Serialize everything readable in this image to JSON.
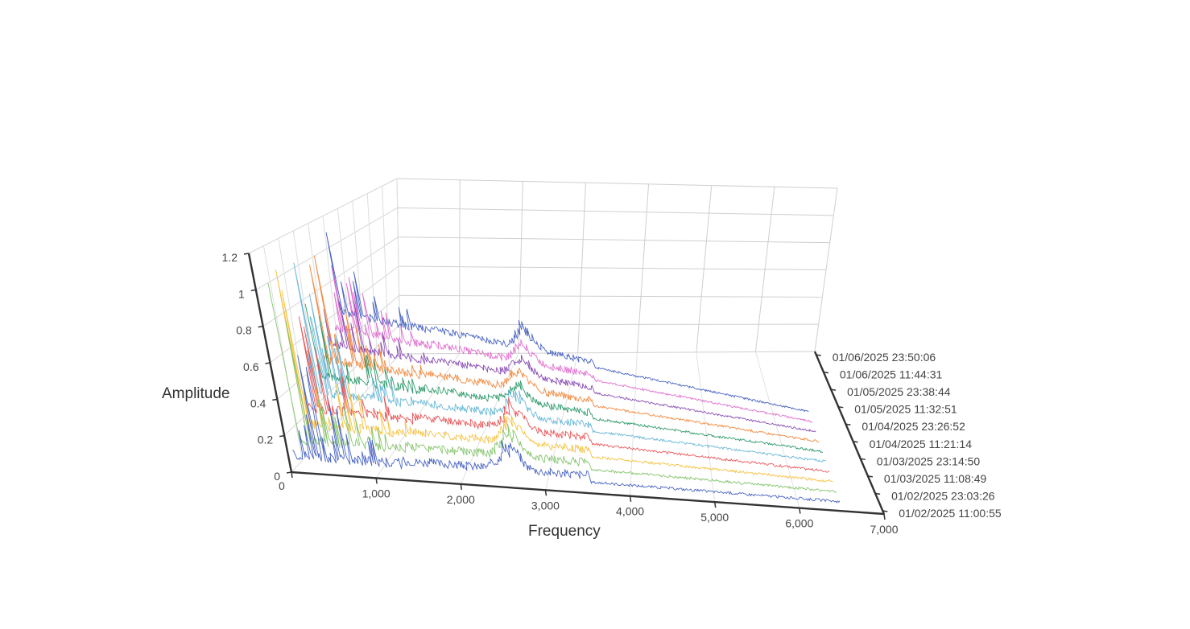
{
  "chart_data": {
    "type": "line",
    "projection": "3d-waterfall",
    "xlabel": "Frequency",
    "ylabel": "",
    "zlabel": "Amplitude",
    "xlim": [
      0,
      7000
    ],
    "zlim": [
      0,
      1.2
    ],
    "x_ticks": [
      "0",
      "1,000",
      "2,000",
      "3,000",
      "4,000",
      "5,000",
      "6,000",
      "7,000"
    ],
    "z_ticks": [
      "0",
      "0.2",
      "0.4",
      "0.6",
      "0.8",
      "1",
      "1.2"
    ],
    "grid": true,
    "legend": "none",
    "series": [
      {
        "name": "01/06/2025 23:50:06",
        "color": "#4a65c2",
        "peak_amplitude": 1.1,
        "resonance_amplitude": 0.14,
        "resonance_frequency": 2800
      },
      {
        "name": "01/06/2025 11:44:31",
        "color": "#86c56e",
        "peak_amplitude": 1.05,
        "resonance_amplitude": 0.14,
        "resonance_frequency": 2800
      },
      {
        "name": "01/05/2025 23:38:44",
        "color": "#f5c242",
        "peak_amplitude": 1.0,
        "resonance_amplitude": 0.14,
        "resonance_frequency": 2800
      },
      {
        "name": "01/05/2025 11:32:51",
        "color": "#e8575a",
        "peak_amplitude": 1.0,
        "resonance_amplitude": 0.15,
        "resonance_frequency": 2800
      },
      {
        "name": "01/04/2025 23:26:52",
        "color": "#6ab8d6",
        "peak_amplitude": 0.95,
        "resonance_amplitude": 0.14,
        "resonance_frequency": 2800
      },
      {
        "name": "01/04/2025 11:21:14",
        "color": "#2e9a6b",
        "peak_amplitude": 0.95,
        "resonance_amplitude": 0.13,
        "resonance_frequency": 2800
      },
      {
        "name": "01/03/2025 23:14:50",
        "color": "#f08a40",
        "peak_amplitude": 0.9,
        "resonance_amplitude": 0.12,
        "resonance_frequency": 2800
      },
      {
        "name": "01/03/2025 11:08:49",
        "color": "#8a4fb5",
        "peak_amplitude": 0.9,
        "resonance_amplitude": 0.12,
        "resonance_frequency": 2800
      },
      {
        "name": "01/02/2025 23:03:26",
        "color": "#e070cf",
        "peak_amplitude": 0.85,
        "resonance_amplitude": 0.12,
        "resonance_frequency": 2800
      },
      {
        "name": "01/02/2025 11:00:55",
        "color": "#4a65c2",
        "peak_amplitude": 0.85,
        "resonance_amplitude": 0.16,
        "resonance_frequency": 2800
      }
    ]
  }
}
